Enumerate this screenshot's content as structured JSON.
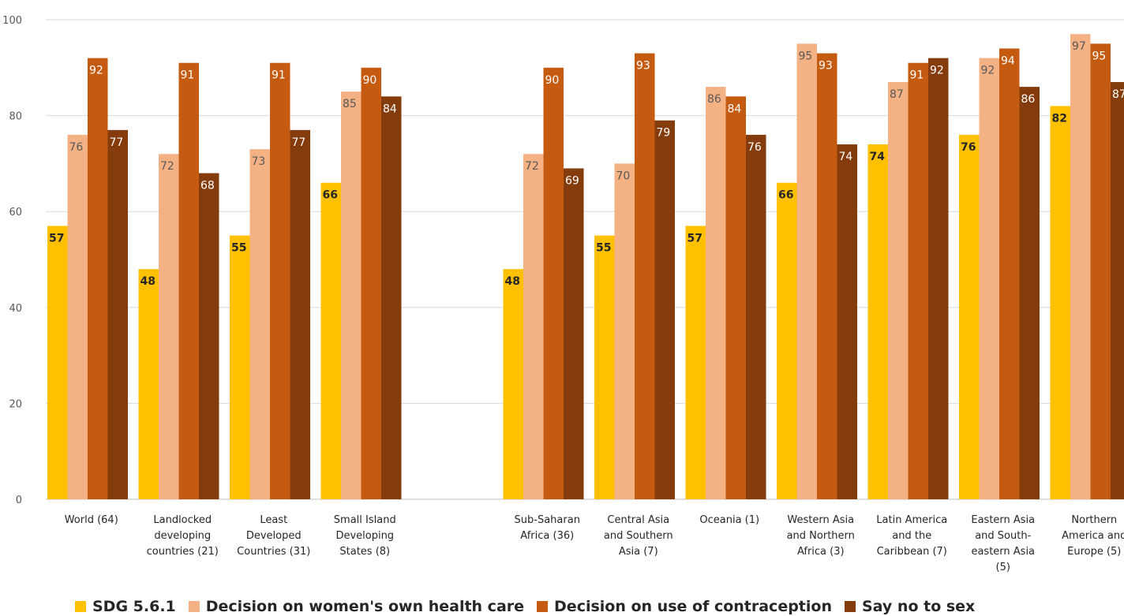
{
  "chart_data": {
    "type": "bar",
    "categories": [
      [
        "World (64)"
      ],
      [
        "Landlocked",
        "developing",
        "countries (21)"
      ],
      [
        "Least",
        "Developed",
        "Countries (31)"
      ],
      [
        "Small Island",
        "Developing",
        "States (8)"
      ],
      [],
      [
        "Sub-Saharan",
        "Africa (36)"
      ],
      [
        "Central Asia",
        "and Southern",
        "Asia (7)"
      ],
      [
        "Oceania (1)"
      ],
      [
        "Western Asia",
        "and Northern",
        "Africa (3)"
      ],
      [
        "Latin America",
        "and the",
        "Caribbean (7)"
      ],
      [
        "Eastern Asia",
        "and South-",
        "eastern Asia",
        "(5)"
      ],
      [
        "Northern",
        "America and",
        "Europe (5)"
      ]
    ],
    "series": [
      {
        "name": "SDG 5.6.1",
        "color": "#FFC000",
        "labelColor": "#262626",
        "bold": true,
        "values": [
          57,
          48,
          55,
          66,
          null,
          48,
          55,
          57,
          66,
          74,
          76,
          82
        ]
      },
      {
        "name": "Decision on women's own health care",
        "color": "#F4B183",
        "labelColor": "#595959",
        "bold": false,
        "values": [
          76,
          72,
          73,
          85,
          null,
          72,
          70,
          86,
          95,
          87,
          92,
          97
        ]
      },
      {
        "name": "Decision on use of contraception",
        "color": "#C55A11",
        "labelColor": "#ffffff",
        "bold": false,
        "values": [
          92,
          91,
          91,
          90,
          null,
          90,
          93,
          84,
          93,
          91,
          94,
          95
        ]
      },
      {
        "name": "Say no to sex",
        "color": "#843C0C",
        "labelColor": "#ffffff",
        "bold": false,
        "values": [
          77,
          68,
          77,
          84,
          null,
          69,
          79,
          76,
          74,
          92,
          86,
          87
        ]
      }
    ],
    "yticks": [
      "0",
      "20",
      "40",
      "60",
      "80",
      "100"
    ],
    "ylim": [
      0,
      100
    ],
    "grid": true,
    "legend_position": "bottom"
  }
}
